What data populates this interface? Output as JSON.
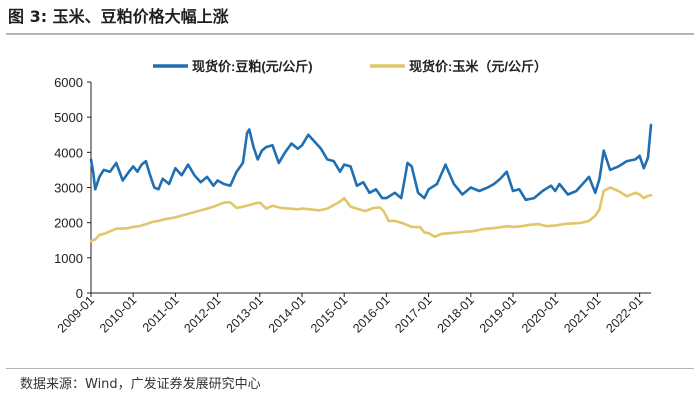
{
  "header": {
    "title": "图 3:  玉米、豆粕价格大幅上涨"
  },
  "footer": {
    "source": "数据来源：Wind，广发证券发展研究中心"
  },
  "chart_data": {
    "type": "line",
    "title": "",
    "xlabel": "",
    "ylabel": "",
    "ylim": [
      0,
      6000
    ],
    "xlim": [
      2009.0,
      2022.27
    ],
    "yticks": [
      "0",
      "1000",
      "2000",
      "3000",
      "4000",
      "5000",
      "6000"
    ],
    "x_tick_labels": [
      "2009-01",
      "2010-01",
      "2011-01",
      "2012-01",
      "2013-01",
      "2014-01",
      "2015-01",
      "2016-01",
      "2017-01",
      "2018-01",
      "2019-01",
      "2020-01",
      "2021-01",
      "2022-01"
    ],
    "grid": false,
    "legend_position": "top-center",
    "series": [
      {
        "name": "现货价:豆粕(元/公斤)",
        "color": "#1f6fb2",
        "x": [
          2009.0,
          2009.05,
          2009.1,
          2009.2,
          2009.3,
          2009.45,
          2009.6,
          2009.75,
          2009.9,
          2010.0,
          2010.1,
          2010.2,
          2010.3,
          2010.4,
          2010.5,
          2010.6,
          2010.7,
          2010.85,
          2011.0,
          2011.15,
          2011.3,
          2011.45,
          2011.6,
          2011.75,
          2011.9,
          2012.0,
          2012.15,
          2012.3,
          2012.45,
          2012.6,
          2012.7,
          2012.75,
          2012.85,
          2012.95,
          2013.05,
          2013.15,
          2013.3,
          2013.45,
          2013.6,
          2013.75,
          2013.9,
          2014.0,
          2014.15,
          2014.3,
          2014.45,
          2014.6,
          2014.75,
          2014.9,
          2015.0,
          2015.15,
          2015.3,
          2015.45,
          2015.6,
          2015.75,
          2015.9,
          2016.0,
          2016.2,
          2016.35,
          2016.45,
          2016.5,
          2016.6,
          2016.75,
          2016.9,
          2017.0,
          2017.2,
          2017.4,
          2017.6,
          2017.8,
          2018.0,
          2018.2,
          2018.4,
          2018.55,
          2018.7,
          2018.85,
          2019.0,
          2019.15,
          2019.3,
          2019.5,
          2019.7,
          2019.9,
          2020.0,
          2020.1,
          2020.3,
          2020.5,
          2020.65,
          2020.8,
          2020.95,
          2021.05,
          2021.15,
          2021.3,
          2021.5,
          2021.7,
          2021.9,
          2022.0,
          2022.1,
          2022.2,
          2022.27
        ],
        "values": [
          3800,
          3450,
          2950,
          3300,
          3500,
          3450,
          3700,
          3200,
          3450,
          3600,
          3450,
          3650,
          3750,
          3350,
          3000,
          2950,
          3250,
          3100,
          3550,
          3350,
          3650,
          3350,
          3150,
          3300,
          3050,
          3200,
          3100,
          3050,
          3450,
          3700,
          4550,
          4650,
          4150,
          3800,
          4050,
          4150,
          4200,
          3700,
          4000,
          4250,
          4100,
          4200,
          4500,
          4300,
          4100,
          3800,
          3750,
          3450,
          3650,
          3600,
          3050,
          3150,
          2850,
          2950,
          2700,
          2700,
          2850,
          2700,
          3350,
          3700,
          3600,
          2850,
          2700,
          2950,
          3100,
          3650,
          3100,
          2800,
          3000,
          2900,
          3000,
          3100,
          3250,
          3450,
          2900,
          2950,
          2650,
          2700,
          2900,
          3050,
          2900,
          3100,
          2800,
          2900,
          3100,
          3300,
          2850,
          3250,
          4050,
          3500,
          3600,
          3750,
          3800,
          3900,
          3550,
          3850,
          4780
        ]
      },
      {
        "name": "现货价:玉米（元/公斤）",
        "color": "#e1c66a",
        "x": [
          2009.0,
          2009.1,
          2009.2,
          2009.35,
          2009.5,
          2009.6,
          2009.75,
          2009.9,
          2010.0,
          2010.15,
          2010.3,
          2010.45,
          2010.6,
          2010.75,
          2010.9,
          2011.0,
          2011.15,
          2011.3,
          2011.45,
          2011.6,
          2011.75,
          2011.9,
          2012.0,
          2012.15,
          2012.3,
          2012.45,
          2012.6,
          2012.75,
          2012.9,
          2013.0,
          2013.15,
          2013.3,
          2013.5,
          2013.7,
          2013.9,
          2014.0,
          2014.2,
          2014.4,
          2014.6,
          2014.75,
          2014.9,
          2015.0,
          2015.15,
          2015.3,
          2015.5,
          2015.7,
          2015.85,
          2015.95,
          2016.05,
          2016.2,
          2016.4,
          2016.6,
          2016.8,
          2016.9,
          2017.0,
          2017.15,
          2017.3,
          2017.5,
          2017.7,
          2017.9,
          2018.0,
          2018.15,
          2018.3,
          2018.5,
          2018.7,
          2018.9,
          2019.0,
          2019.2,
          2019.4,
          2019.6,
          2019.8,
          2020.0,
          2020.2,
          2020.4,
          2020.6,
          2020.8,
          2020.95,
          2021.05,
          2021.15,
          2021.3,
          2021.5,
          2021.7,
          2021.9,
          2022.0,
          2022.1,
          2022.2,
          2022.27
        ],
        "values": [
          1480,
          1520,
          1650,
          1700,
          1780,
          1830,
          1830,
          1850,
          1880,
          1900,
          1960,
          2020,
          2050,
          2100,
          2130,
          2150,
          2200,
          2250,
          2300,
          2350,
          2400,
          2450,
          2500,
          2570,
          2580,
          2420,
          2450,
          2500,
          2550,
          2570,
          2400,
          2480,
          2420,
          2400,
          2380,
          2400,
          2380,
          2350,
          2400,
          2500,
          2600,
          2700,
          2450,
          2400,
          2330,
          2420,
          2430,
          2300,
          2050,
          2050,
          1980,
          1880,
          1870,
          1720,
          1700,
          1600,
          1680,
          1700,
          1720,
          1750,
          1750,
          1780,
          1820,
          1840,
          1870,
          1900,
          1880,
          1900,
          1940,
          1960,
          1900,
          1920,
          1960,
          1980,
          1990,
          2050,
          2200,
          2380,
          2900,
          3000,
          2900,
          2750,
          2850,
          2800,
          2700,
          2760,
          2780
        ]
      }
    ]
  }
}
